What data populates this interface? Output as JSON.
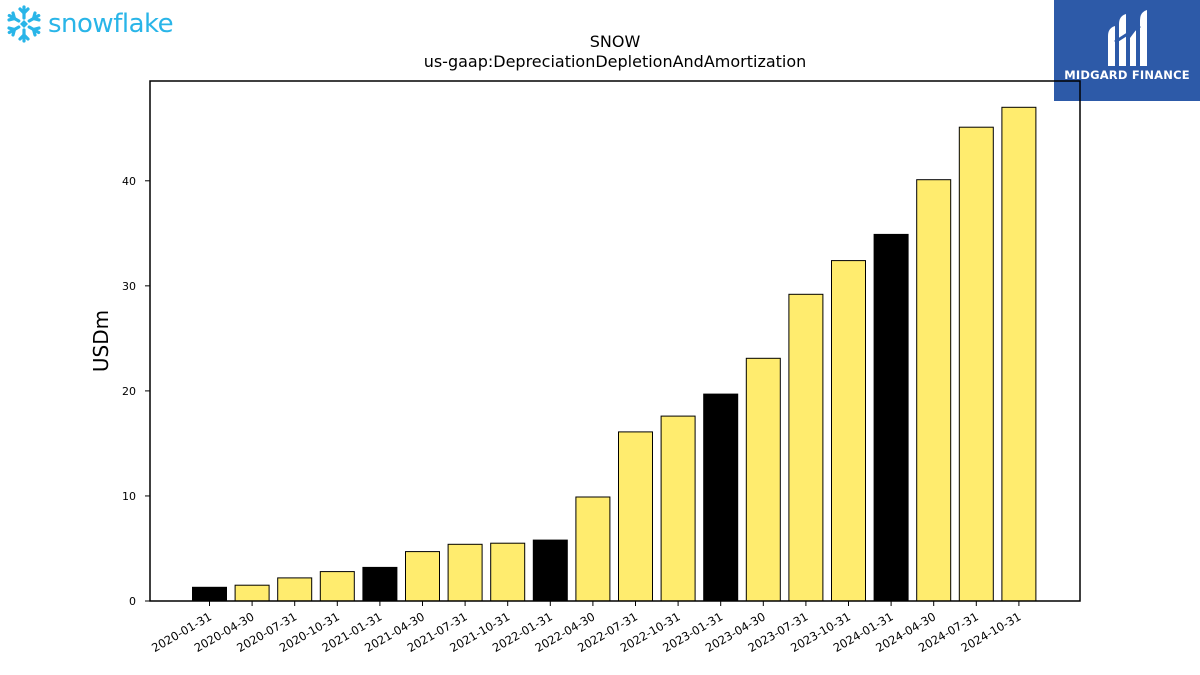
{
  "brand_left": {
    "wordmark": "snowflake",
    "icon": "snowflake-logo-icon",
    "color": "#29b5e8"
  },
  "brand_right": {
    "name": "MIDGARD FINANCE",
    "icon": "midgard-logo-icon",
    "background": "#2d5aa8"
  },
  "chart_data": {
    "type": "bar",
    "title": "SNOW",
    "subtitle": "us-gaap:DepreciationDepletionAndAmortization",
    "xlabel": "",
    "ylabel": "USDm",
    "ylim": [
      0,
      49.5
    ],
    "yticks": [
      0,
      10,
      20,
      30,
      40
    ],
    "grid": false,
    "categories": [
      "2020-01-31",
      "2020-04-30",
      "2020-07-31",
      "2020-10-31",
      "2021-01-31",
      "2021-04-30",
      "2021-07-31",
      "2021-10-31",
      "2022-01-31",
      "2022-04-30",
      "2022-07-31",
      "2022-10-31",
      "2023-01-31",
      "2023-04-30",
      "2023-07-31",
      "2023-10-31",
      "2024-01-31",
      "2024-04-30",
      "2024-07-31",
      "2024-10-31"
    ],
    "values": [
      1.3,
      1.5,
      2.2,
      2.8,
      3.2,
      4.7,
      5.4,
      5.5,
      5.8,
      9.9,
      16.1,
      17.6,
      19.7,
      23.1,
      29.2,
      32.4,
      34.9,
      40.1,
      45.1,
      47.0
    ],
    "highlighted": [
      "2020-01-31",
      "2021-01-31",
      "2022-01-31",
      "2023-01-31",
      "2024-01-31"
    ],
    "colors": {
      "bar": "#ffec6e",
      "highlight": "#000000",
      "edge": "#000000"
    }
  }
}
